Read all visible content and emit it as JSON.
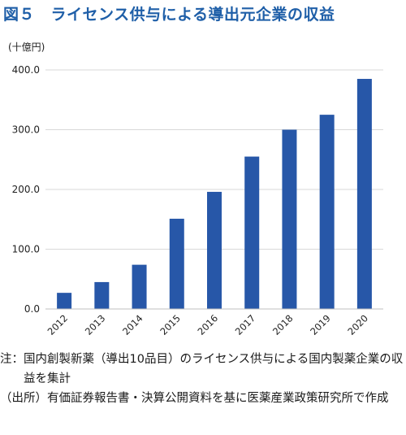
{
  "title": "図５　ライセンス供与による導出元企業の収益",
  "chart_data": {
    "type": "bar",
    "unit_label": "(十億円)",
    "categories": [
      "2012",
      "2013",
      "2014",
      "2015",
      "2016",
      "2017",
      "2018",
      "2019",
      "2020"
    ],
    "values": [
      27,
      45,
      74,
      151,
      196,
      255,
      300,
      325,
      385
    ],
    "y_ticks": [
      "0.0",
      "100.0",
      "200.0",
      "300.0",
      "400.0"
    ],
    "ylim": [
      0,
      400
    ],
    "grid": true,
    "legend": "none",
    "bar_color": "#2757a8"
  },
  "notes": [
    {
      "label": "注：",
      "text": "国内創製新薬（導出10品目）のライセンス供与による国内製薬企業の収益を集計"
    },
    {
      "label": "（出所）",
      "text": "有価証券報告書・決算公開資料を基に医薬産業政策研究所で作成"
    }
  ]
}
